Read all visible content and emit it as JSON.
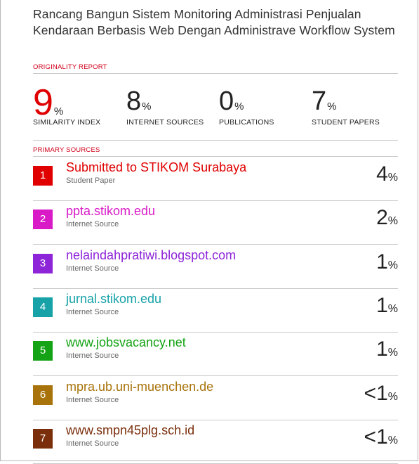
{
  "document": {
    "title": "Rancang Bangun Sistem Monitoring Administrasi Penjualan Kendaraan Berbasis Web Dengan Administrave Workflow System",
    "originality_label": "ORIGINALITY REPORT",
    "primary_label": "PRIMARY SOURCES"
  },
  "stats": [
    {
      "value": "9",
      "unit": "%",
      "label": "SIMILARITY INDEX",
      "color": "#e00000"
    },
    {
      "value": "8",
      "unit": "%",
      "label": "INTERNET SOURCES"
    },
    {
      "value": "0",
      "unit": "%",
      "label": "PUBLICATIONS"
    },
    {
      "value": "7",
      "unit": "%",
      "label": "STUDENT PAPERS"
    }
  ],
  "sources": [
    {
      "rank": "1",
      "name": "Submitted to STIKOM Surabaya",
      "type": "Student Paper",
      "share": "4",
      "unit": "%",
      "color": "#e00000"
    },
    {
      "rank": "2",
      "name": "ppta.stikom.edu",
      "type": "Internet Source",
      "share": "2",
      "unit": "%",
      "color": "#d81bc7"
    },
    {
      "rank": "3",
      "name": "nelaindahpratiwi.blogspot.com",
      "type": "Internet Source",
      "share": "1",
      "unit": "%",
      "color": "#8e24d8"
    },
    {
      "rank": "4",
      "name": "jurnal.stikom.edu",
      "type": "Internet Source",
      "share": "1",
      "unit": "%",
      "color": "#17a2a8"
    },
    {
      "rank": "5",
      "name": "www.jobsvacancy.net",
      "type": "Internet Source",
      "share": "1",
      "unit": "%",
      "color": "#14a314"
    },
    {
      "rank": "6",
      "name": "mpra.ub.uni-muenchen.de",
      "type": "Internet Source",
      "share": "<1",
      "unit": "%",
      "color": "#a8730a"
    },
    {
      "rank": "7",
      "name": "www.smpn45plg.sch.id",
      "type": "Internet Source",
      "share": "<1",
      "unit": "%",
      "color": "#7a2e0b"
    }
  ]
}
